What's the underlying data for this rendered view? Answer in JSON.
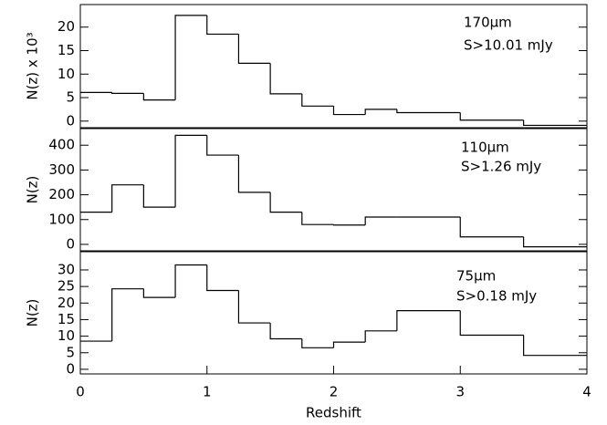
{
  "chart_data": [
    {
      "type": "histogram",
      "ylabel": "N(z) x 10³",
      "annotations": [
        "170μm",
        "S>10.01 mJy"
      ],
      "bins": [
        0,
        0.25,
        0.5,
        0.75,
        1,
        1.25,
        1.5,
        1.75,
        2,
        2.25,
        2.5,
        3,
        3.5,
        4
      ],
      "values": [
        6.1,
        5.9,
        4.5,
        22.5,
        18.5,
        12.3,
        5.8,
        3.2,
        1.4,
        2.5,
        1.8,
        0.2,
        -0.9
      ],
      "xlim": [
        0,
        4
      ],
      "ylim": [
        -1.4,
        24.8
      ],
      "yticks": [
        0,
        5,
        10,
        15,
        20
      ],
      "color": "#000000"
    },
    {
      "type": "histogram",
      "ylabel": "N(z)",
      "annotations": [
        "110μm",
        "S>1.26 mJy"
      ],
      "bins": [
        0,
        0.25,
        0.5,
        0.75,
        1,
        1.25,
        1.5,
        1.75,
        2,
        2.25,
        2.5,
        3,
        3.5,
        4
      ],
      "values": [
        130,
        240,
        150,
        440,
        360,
        210,
        130,
        80,
        78,
        110,
        110,
        30,
        -10
      ],
      "xlim": [
        0,
        4
      ],
      "ylim": [
        -26,
        467
      ],
      "yticks": [
        0,
        100,
        200,
        300,
        400
      ],
      "color": "#000000"
    },
    {
      "type": "histogram",
      "ylabel": "N(z)",
      "annotations": [
        "75μm",
        "S>0.18 mJy"
      ],
      "xlabel": "Redshift",
      "bins": [
        0,
        0.25,
        0.5,
        0.75,
        1,
        1.25,
        1.5,
        1.75,
        2,
        2.25,
        2.5,
        3,
        3.5,
        4
      ],
      "values": [
        8.5,
        24.3,
        21.7,
        31.5,
        23.8,
        14,
        9.2,
        6.5,
        8.2,
        11.6,
        17.7,
        10.3,
        4.2
      ],
      "xlim": [
        0,
        4
      ],
      "xticks": [
        0,
        1,
        2,
        3,
        4
      ],
      "ylim": [
        -1.4,
        35.5
      ],
      "yticks": [
        0,
        5,
        10,
        15,
        20,
        25,
        30
      ],
      "color": "#000000"
    }
  ]
}
